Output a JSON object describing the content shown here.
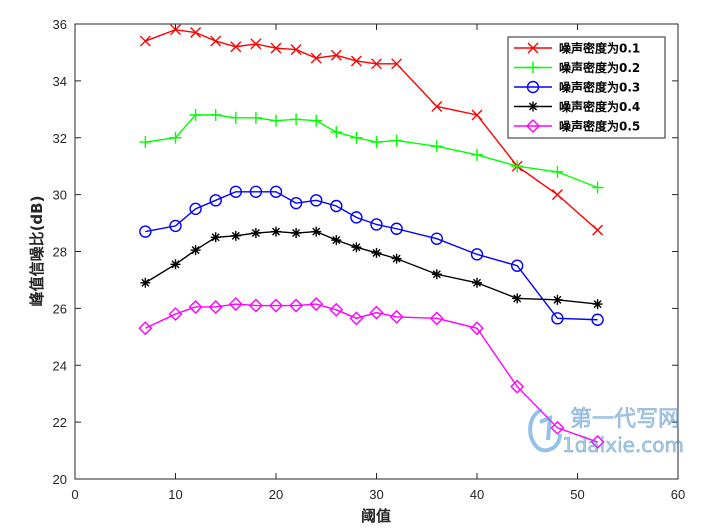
{
  "chart_data": {
    "type": "line",
    "xlabel": "阈值",
    "ylabel": "峰值信噪比(dB)",
    "xlim": [
      0,
      60
    ],
    "ylim": [
      20,
      36
    ],
    "xticks": [
      0,
      10,
      20,
      30,
      40,
      50,
      60
    ],
    "yticks": [
      20,
      22,
      24,
      26,
      28,
      30,
      32,
      34,
      36
    ],
    "legend_position": "top-right",
    "x": [
      7,
      10,
      12,
      14,
      16,
      18,
      20,
      22,
      24,
      26,
      28,
      30,
      32,
      36,
      40,
      44,
      48,
      52
    ],
    "series": [
      {
        "name": "噪声密度为0.1",
        "label_prefix": "噪声密度为",
        "label_value": "0.1",
        "color": "#ff0000",
        "marker": "x",
        "values": [
          35.4,
          35.8,
          35.7,
          35.4,
          35.2,
          35.3,
          35.15,
          35.1,
          34.8,
          34.9,
          34.7,
          34.6,
          34.6,
          33.1,
          32.8,
          31.0,
          30.0,
          28.75
        ]
      },
      {
        "name": "噪声密度为0.2",
        "label_prefix": "噪声密度为",
        "label_value": "0.2",
        "color": "#00ff00",
        "marker": "+",
        "values": [
          31.85,
          32.0,
          32.8,
          32.8,
          32.7,
          32.7,
          32.6,
          32.65,
          32.6,
          32.2,
          32.0,
          31.85,
          31.9,
          31.7,
          31.4,
          31.0,
          30.8,
          30.25
        ]
      },
      {
        "name": "噪声密度为0.3",
        "label_prefix": "噪声密度为",
        "label_value": "0.3",
        "color": "#0000ff",
        "marker": "o",
        "values": [
          28.7,
          28.9,
          29.5,
          29.8,
          30.1,
          30.1,
          30.1,
          29.7,
          29.8,
          29.6,
          29.2,
          28.95,
          28.8,
          28.45,
          27.9,
          27.5,
          25.65,
          25.6
        ]
      },
      {
        "name": "噪声密度为0.4",
        "label_prefix": "噪声密度为",
        "label_value": "0.4",
        "color": "#000000",
        "marker": "*",
        "values": [
          26.9,
          27.55,
          28.05,
          28.5,
          28.55,
          28.65,
          28.7,
          28.65,
          28.7,
          28.4,
          28.15,
          27.95,
          27.75,
          27.2,
          26.9,
          26.35,
          26.3,
          26.15
        ]
      },
      {
        "name": "噪声密度为0.5",
        "label_prefix": "噪声密度为",
        "label_value": "0.5",
        "color": "#ff00ff",
        "marker": "diamond",
        "values": [
          25.3,
          25.8,
          26.05,
          26.05,
          26.15,
          26.1,
          26.1,
          26.1,
          26.15,
          25.95,
          25.65,
          25.85,
          25.7,
          25.65,
          25.3,
          23.25,
          21.8,
          21.3
        ]
      }
    ]
  },
  "watermark": {
    "line1": "第一代写网",
    "line2": "1daixie.com"
  }
}
